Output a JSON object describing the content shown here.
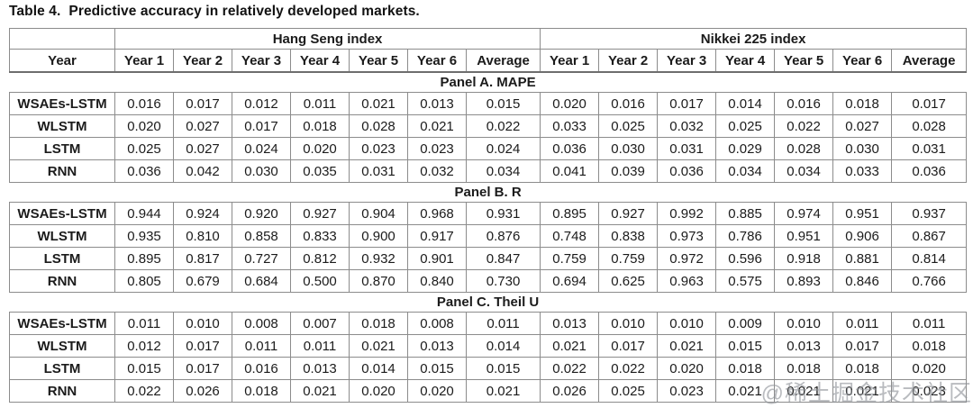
{
  "title_label": "Table 4.",
  "title_text": "Predictive accuracy in relatively developed markets.",
  "watermark": "@稀土掘金技术社区",
  "table": {
    "row_header": "Year",
    "groups": [
      {
        "label": "Hang Seng index"
      },
      {
        "label": "Nikkei 225 index"
      }
    ],
    "year_columns": [
      "Year 1",
      "Year 2",
      "Year 3",
      "Year 4",
      "Year 5",
      "Year 6",
      "Average"
    ],
    "panels": [
      {
        "label": "Panel A. MAPE",
        "rows": [
          {
            "model": "WSAEs-LSTM",
            "hang_seng": [
              "0.016",
              "0.017",
              "0.012",
              "0.011",
              "0.021",
              "0.013",
              "0.015"
            ],
            "nikkei": [
              "0.020",
              "0.016",
              "0.017",
              "0.014",
              "0.016",
              "0.018",
              "0.017"
            ]
          },
          {
            "model": "WLSTM",
            "hang_seng": [
              "0.020",
              "0.027",
              "0.017",
              "0.018",
              "0.028",
              "0.021",
              "0.022"
            ],
            "nikkei": [
              "0.033",
              "0.025",
              "0.032",
              "0.025",
              "0.022",
              "0.027",
              "0.028"
            ]
          },
          {
            "model": "LSTM",
            "hang_seng": [
              "0.025",
              "0.027",
              "0.024",
              "0.020",
              "0.023",
              "0.023",
              "0.024"
            ],
            "nikkei": [
              "0.036",
              "0.030",
              "0.031",
              "0.029",
              "0.028",
              "0.030",
              "0.031"
            ]
          },
          {
            "model": "RNN",
            "hang_seng": [
              "0.036",
              "0.042",
              "0.030",
              "0.035",
              "0.031",
              "0.032",
              "0.034"
            ],
            "nikkei": [
              "0.041",
              "0.039",
              "0.036",
              "0.034",
              "0.034",
              "0.033",
              "0.036"
            ]
          }
        ]
      },
      {
        "label": "Panel B. R",
        "rows": [
          {
            "model": "WSAEs-LSTM",
            "hang_seng": [
              "0.944",
              "0.924",
              "0.920",
              "0.927",
              "0.904",
              "0.968",
              "0.931"
            ],
            "nikkei": [
              "0.895",
              "0.927",
              "0.992",
              "0.885",
              "0.974",
              "0.951",
              "0.937"
            ]
          },
          {
            "model": "WLSTM",
            "hang_seng": [
              "0.935",
              "0.810",
              "0.858",
              "0.833",
              "0.900",
              "0.917",
              "0.876"
            ],
            "nikkei": [
              "0.748",
              "0.838",
              "0.973",
              "0.786",
              "0.951",
              "0.906",
              "0.867"
            ]
          },
          {
            "model": "LSTM",
            "hang_seng": [
              "0.895",
              "0.817",
              "0.727",
              "0.812",
              "0.932",
              "0.901",
              "0.847"
            ],
            "nikkei": [
              "0.759",
              "0.759",
              "0.972",
              "0.596",
              "0.918",
              "0.881",
              "0.814"
            ]
          },
          {
            "model": "RNN",
            "hang_seng": [
              "0.805",
              "0.679",
              "0.684",
              "0.500",
              "0.870",
              "0.840",
              "0.730"
            ],
            "nikkei": [
              "0.694",
              "0.625",
              "0.963",
              "0.575",
              "0.893",
              "0.846",
              "0.766"
            ]
          }
        ]
      },
      {
        "label": "Panel C. Theil U",
        "rows": [
          {
            "model": "WSAEs-LSTM",
            "hang_seng": [
              "0.011",
              "0.010",
              "0.008",
              "0.007",
              "0.018",
              "0.008",
              "0.011"
            ],
            "nikkei": [
              "0.013",
              "0.010",
              "0.010",
              "0.009",
              "0.010",
              "0.011",
              "0.011"
            ]
          },
          {
            "model": "WLSTM",
            "hang_seng": [
              "0.012",
              "0.017",
              "0.011",
              "0.011",
              "0.021",
              "0.013",
              "0.014"
            ],
            "nikkei": [
              "0.021",
              "0.017",
              "0.021",
              "0.015",
              "0.013",
              "0.017",
              "0.018"
            ]
          },
          {
            "model": "LSTM",
            "hang_seng": [
              "0.015",
              "0.017",
              "0.016",
              "0.013",
              "0.014",
              "0.015",
              "0.015"
            ],
            "nikkei": [
              "0.022",
              "0.022",
              "0.020",
              "0.018",
              "0.018",
              "0.018",
              "0.020"
            ]
          },
          {
            "model": "RNN",
            "hang_seng": [
              "0.022",
              "0.026",
              "0.018",
              "0.021",
              "0.020",
              "0.020",
              "0.021"
            ],
            "nikkei": [
              "0.026",
              "0.025",
              "0.023",
              "0.021",
              "0.021",
              "0.021",
              "0.023"
            ]
          }
        ]
      }
    ]
  }
}
